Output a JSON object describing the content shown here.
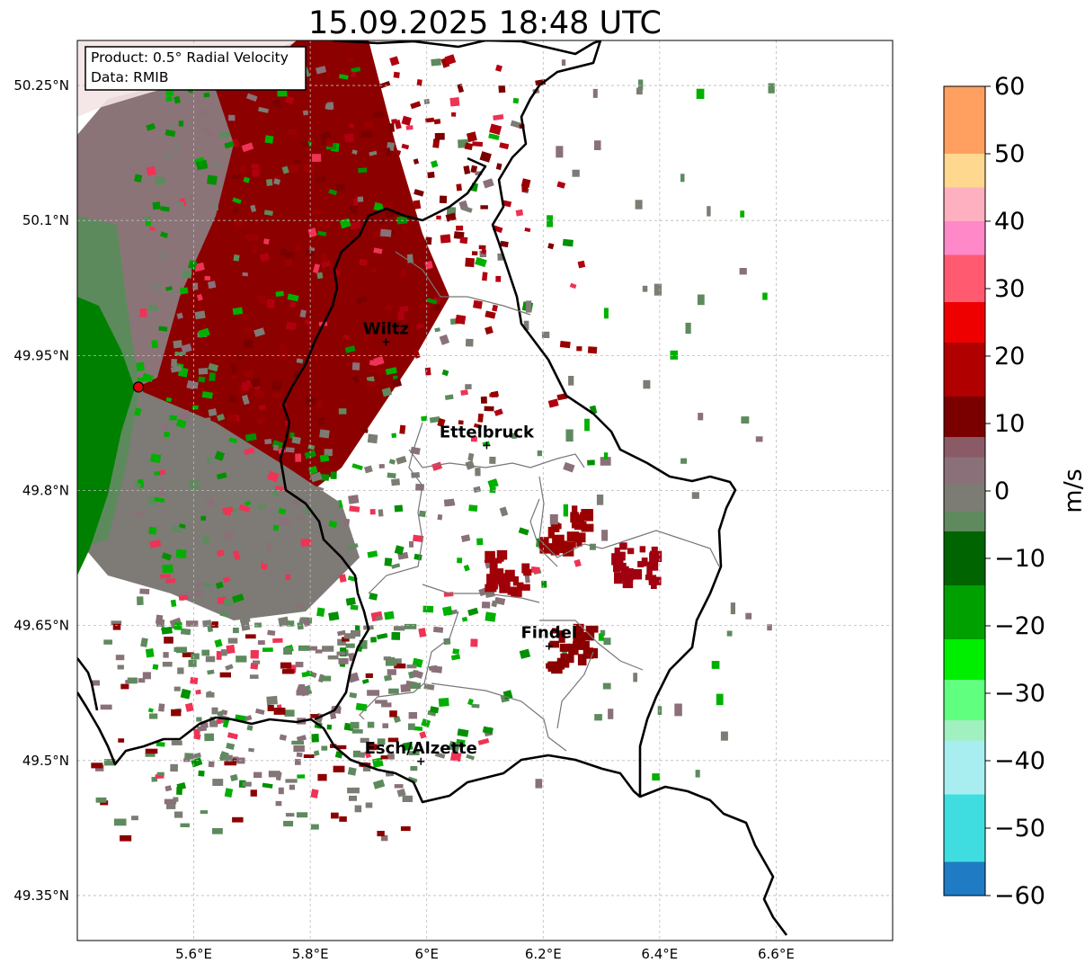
{
  "title": "15.09.2025 18:48 UTC",
  "info_box": {
    "line1": "Product: 0.5° Radial Velocity",
    "line2": "Data: RMIB"
  },
  "map": {
    "lon_range": [
      5.4,
      6.8
    ],
    "lat_range": [
      49.3,
      50.3
    ],
    "radar_site": {
      "lon": 5.505,
      "lat": 49.915,
      "color": "#e8000b"
    },
    "lat_ticks": [
      {
        "value": 50.25,
        "label": "50.25°N"
      },
      {
        "value": 50.1,
        "label": "50.1°N"
      },
      {
        "value": 49.95,
        "label": "49.95°N"
      },
      {
        "value": 49.8,
        "label": "49.8°N"
      },
      {
        "value": 49.65,
        "label": "49.65°N"
      },
      {
        "value": 49.5,
        "label": "49.5°N"
      },
      {
        "value": 49.35,
        "label": "49.35°N"
      }
    ],
    "lon_ticks": [
      {
        "value": 5.6,
        "label": "5.6°E"
      },
      {
        "value": 5.8,
        "label": "5.8°E"
      },
      {
        "value": 6.0,
        "label": "6°E"
      },
      {
        "value": 6.2,
        "label": "6.2°E"
      },
      {
        "value": 6.4,
        "label": "6.4°E"
      },
      {
        "value": 6.6,
        "label": "6.6°E"
      }
    ],
    "cities": [
      {
        "name": "Wiltz",
        "lon": 5.93,
        "lat": 49.965
      },
      {
        "name": "Ettelbruck",
        "lon": 6.103,
        "lat": 49.85
      },
      {
        "name": "Findel",
        "lon": 6.21,
        "lat": 49.627
      },
      {
        "name": "Esch/Alzette",
        "lon": 5.99,
        "lat": 49.499
      }
    ],
    "echo_clusters": [
      {
        "lon": 6.23,
        "lat": 49.76,
        "color": "#9a0000"
      },
      {
        "lon": 6.13,
        "lat": 49.71,
        "color": "#a00008"
      },
      {
        "lon": 6.35,
        "lat": 49.725,
        "color": "#a00010"
      },
      {
        "lon": 6.24,
        "lat": 49.63,
        "color": "#8a0000"
      }
    ]
  },
  "colorbar": {
    "label": "m/s",
    "min": -60,
    "max": 60,
    "ticks": [
      {
        "value": 60,
        "label": "60"
      },
      {
        "value": 50,
        "label": "50"
      },
      {
        "value": 40,
        "label": "40"
      },
      {
        "value": 30,
        "label": "30"
      },
      {
        "value": 20,
        "label": "20"
      },
      {
        "value": 10,
        "label": "10"
      },
      {
        "value": 0,
        "label": "0"
      },
      {
        "value": -10,
        "label": "−10"
      },
      {
        "value": -20,
        "label": "−20"
      },
      {
        "value": -30,
        "label": "−30"
      },
      {
        "value": -40,
        "label": "−40"
      },
      {
        "value": -50,
        "label": "−50"
      },
      {
        "value": -60,
        "label": "−60"
      }
    ],
    "stops": [
      {
        "from": 50,
        "to": 60,
        "color": "#ffa060"
      },
      {
        "from": 45,
        "to": 50,
        "color": "#ffd890"
      },
      {
        "from": 40,
        "to": 45,
        "color": "#ffb0c0"
      },
      {
        "from": 35,
        "to": 40,
        "color": "#ff88c8"
      },
      {
        "from": 28,
        "to": 35,
        "color": "#ff5a70"
      },
      {
        "from": 22,
        "to": 28,
        "color": "#ee0000"
      },
      {
        "from": 14,
        "to": 22,
        "color": "#b00000"
      },
      {
        "from": 8,
        "to": 14,
        "color": "#7a0000"
      },
      {
        "from": 5,
        "to": 8,
        "color": "#8a5a66"
      },
      {
        "from": 1,
        "to": 5,
        "color": "#8a7078"
      },
      {
        "from": -3,
        "to": 1,
        "color": "#7c7c74"
      },
      {
        "from": -6,
        "to": -3,
        "color": "#5e8a5e"
      },
      {
        "from": -14,
        "to": -6,
        "color": "#006400"
      },
      {
        "from": -22,
        "to": -14,
        "color": "#00a000"
      },
      {
        "from": -28,
        "to": -22,
        "color": "#00ee00"
      },
      {
        "from": -34,
        "to": -28,
        "color": "#60ff80"
      },
      {
        "from": -37,
        "to": -34,
        "color": "#a0f0c0"
      },
      {
        "from": -45,
        "to": -37,
        "color": "#a8eef0"
      },
      {
        "from": -55,
        "to": -45,
        "color": "#40dde0"
      },
      {
        "from": -60,
        "to": -55,
        "color": "#1e7bc4"
      }
    ]
  }
}
